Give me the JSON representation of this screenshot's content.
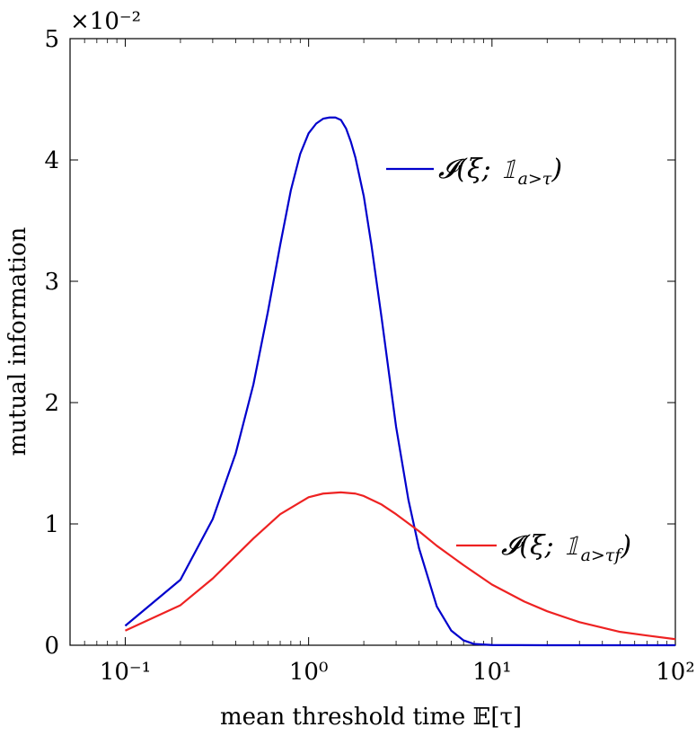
{
  "chart_data": {
    "type": "line",
    "xlabel": "mean threshold time 𝔼[τ]",
    "ylabel": "mutual information",
    "x_scale": "log",
    "xlim": [
      0.05,
      100
    ],
    "ylim": [
      0,
      0.05
    ],
    "y_multiplier_label": "×10⁻²",
    "x_ticks": [
      {
        "value": 0.1,
        "label": "10⁻¹"
      },
      {
        "value": 1,
        "label": "10⁰"
      },
      {
        "value": 10,
        "label": "10¹"
      },
      {
        "value": 100,
        "label": "10²"
      }
    ],
    "y_ticks": [
      {
        "value": 0,
        "label": "0"
      },
      {
        "value": 0.01,
        "label": "1"
      },
      {
        "value": 0.02,
        "label": "2"
      },
      {
        "value": 0.03,
        "label": "3"
      },
      {
        "value": 0.04,
        "label": "4"
      },
      {
        "value": 0.05,
        "label": "5"
      }
    ],
    "grid": false,
    "legend": "inline",
    "series": [
      {
        "name": "𝓘(ξ; 𝟙ₐ₍>τ₎)",
        "color": "#0000cc",
        "x": [
          0.1,
          0.2,
          0.3,
          0.4,
          0.5,
          0.6,
          0.7,
          0.8,
          0.9,
          1.0,
          1.1,
          1.2,
          1.3,
          1.4,
          1.5,
          1.6,
          1.7,
          1.8,
          2.0,
          2.2,
          2.5,
          3.0,
          3.5,
          4.0,
          5.0,
          6.0,
          7.0,
          8.0,
          10,
          20,
          50,
          100
        ],
        "y": [
          0.0016,
          0.0054,
          0.0104,
          0.0158,
          0.0215,
          0.0275,
          0.033,
          0.0375,
          0.0405,
          0.0422,
          0.043,
          0.0434,
          0.0435,
          0.0435,
          0.0433,
          0.0426,
          0.0415,
          0.0402,
          0.037,
          0.033,
          0.027,
          0.018,
          0.012,
          0.008,
          0.0032,
          0.0012,
          0.0004,
          0.0001,
          2e-05,
          0.0,
          0.0,
          0.0
        ]
      },
      {
        "name": "𝓘(ξ; 𝟙ₐ>τ_f)",
        "color": "#ee2222",
        "x": [
          0.1,
          0.2,
          0.3,
          0.5,
          0.7,
          1.0,
          1.2,
          1.5,
          1.8,
          2.0,
          2.5,
          3.0,
          4.0,
          5.0,
          7.0,
          10,
          15,
          20,
          30,
          50,
          70,
          100
        ],
        "y": [
          0.0012,
          0.0033,
          0.0055,
          0.0088,
          0.0108,
          0.0122,
          0.0125,
          0.0126,
          0.0125,
          0.0123,
          0.0116,
          0.0108,
          0.0094,
          0.0082,
          0.0066,
          0.005,
          0.0036,
          0.0028,
          0.0019,
          0.0011,
          0.0008,
          0.0005
        ]
      }
    ],
    "legend_entries": [
      {
        "text": "𝓘(ξ; 𝟙",
        "subscript": "a>τ",
        "suffix": ")",
        "color": "#0000cc"
      },
      {
        "text": "𝓘(ξ; 𝟙",
        "subscript": "a>τf",
        "suffix": ")",
        "color": "#ee2222"
      }
    ]
  }
}
